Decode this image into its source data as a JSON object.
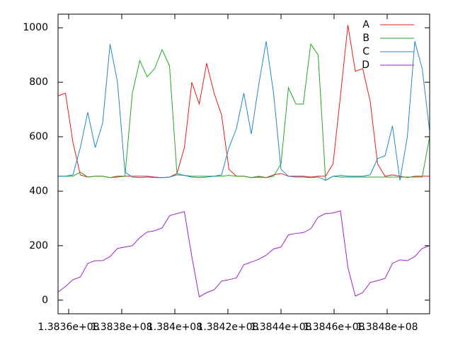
{
  "chart_data": {
    "type": "line",
    "x": [
      138356000,
      138358800,
      138361600,
      138364400,
      138367200,
      138370000,
      138372800,
      138375600,
      138378400,
      138381200,
      138384000,
      138386800,
      138389600,
      138392400,
      138395200,
      138398000,
      138400800,
      138403600,
      138406400,
      138409200,
      138412000,
      138414800,
      138417600,
      138420400,
      138423200,
      138426000,
      138428800,
      138431600,
      138434400,
      138437200,
      138440000,
      138442800,
      138445600,
      138448400,
      138451200,
      138454000,
      138456800,
      138459600,
      138462400,
      138465200,
      138468000,
      138470800,
      138473600,
      138476400,
      138479200,
      138482000,
      138484800,
      138487600,
      138490400,
      138493200,
      138496000
    ],
    "series": [
      {
        "name": "A",
        "color": "#e41a1c",
        "values": [
          750,
          760,
          580,
          460,
          452,
          455,
          455,
          450,
          455,
          455,
          455,
          455,
          455,
          452,
          450,
          452,
          465,
          560,
          800,
          720,
          870,
          760,
          680,
          480,
          455,
          455,
          450,
          452,
          450,
          460,
          465,
          455,
          455,
          455,
          452,
          455,
          455,
          500,
          750,
          1010,
          840,
          850,
          730,
          500,
          455,
          460,
          455,
          450,
          455,
          455,
          455
        ]
      },
      {
        "name": "B",
        "color": "#1faa1f",
        "values": [
          455,
          455,
          455,
          470,
          452,
          455,
          455,
          450,
          452,
          455,
          760,
          880,
          820,
          850,
          920,
          860,
          465,
          458,
          455,
          455,
          455,
          455,
          455,
          458,
          455,
          455,
          450,
          455,
          450,
          455,
          500,
          780,
          720,
          720,
          940,
          900,
          440,
          455,
          452,
          452,
          452,
          452,
          452,
          452,
          452,
          452,
          452,
          452,
          452,
          452,
          600
        ]
      },
      {
        "name": "C",
        "color": "#1e88c8",
        "values": [
          455,
          455,
          460,
          560,
          690,
          560,
          650,
          940,
          800,
          470,
          452,
          450,
          452,
          450,
          450,
          452,
          460,
          458,
          452,
          450,
          452,
          455,
          460,
          560,
          630,
          760,
          610,
          790,
          950,
          760,
          480,
          455,
          452,
          452,
          450,
          452,
          440,
          455,
          458,
          455,
          455,
          455,
          460,
          520,
          530,
          640,
          440,
          600,
          950,
          850,
          620
        ]
      },
      {
        "name": "D",
        "color": "#a020d0",
        "values": [
          30,
          50,
          75,
          85,
          135,
          145,
          145,
          160,
          190,
          195,
          200,
          230,
          250,
          255,
          265,
          310,
          318,
          325,
          160,
          12,
          28,
          38,
          70,
          75,
          82,
          130,
          140,
          150,
          165,
          188,
          195,
          240,
          245,
          248,
          262,
          305,
          318,
          320,
          328,
          120,
          15,
          28,
          65,
          72,
          80,
          135,
          148,
          145,
          160,
          190,
          200
        ]
      }
    ],
    "xlim": [
      138356000,
      138496000
    ],
    "xticks": [
      {
        "value": 138360000,
        "label": "1.3836e+08"
      },
      {
        "value": 138380000,
        "label": "1.3838e+08"
      },
      {
        "value": 138400000,
        "label": "1.384e+08"
      },
      {
        "value": 138420000,
        "label": "1.3842e+08"
      },
      {
        "value": 138440000,
        "label": "1.3844e+08"
      },
      {
        "value": 138460000,
        "label": "1.3846e+08"
      },
      {
        "value": 138480000,
        "label": "1.3848e+08"
      }
    ],
    "ylim": [
      -50,
      1050
    ],
    "yticks": [
      0,
      200,
      400,
      600,
      800,
      1000
    ],
    "grid": false,
    "legend": "top-right"
  }
}
